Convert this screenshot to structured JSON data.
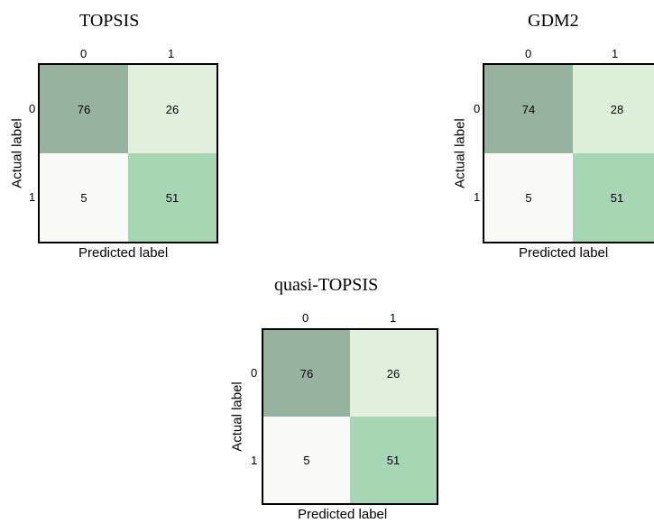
{
  "chart_data": [
    {
      "type": "heatmap",
      "title": "TOPSIS",
      "xlabel": "Predicted label",
      "ylabel": "Actual label",
      "x_categories": [
        "0",
        "1"
      ],
      "y_categories": [
        "0",
        "1"
      ],
      "values": [
        [
          76,
          26
        ],
        [
          5,
          51
        ]
      ],
      "colors": [
        [
          "#97b3a0",
          "#e0f0dc"
        ],
        [
          "#f9f9f7",
          "#a7d6b5"
        ]
      ],
      "grid": false,
      "legend": "none"
    },
    {
      "type": "heatmap",
      "title": "GDM2",
      "xlabel": "Predicted label",
      "ylabel": "Actual label",
      "x_categories": [
        "0",
        "1"
      ],
      "y_categories": [
        "0",
        "1"
      ],
      "values": [
        [
          74,
          28
        ],
        [
          5,
          51
        ]
      ],
      "colors": [
        [
          "#97b3a0",
          "#ddefd9"
        ],
        [
          "#f9f9f7",
          "#a7d6b5"
        ]
      ],
      "grid": false,
      "legend": "none"
    },
    {
      "type": "heatmap",
      "title": "quasi-TOPSIS",
      "xlabel": "Predicted label",
      "ylabel": "Actual label",
      "x_categories": [
        "0",
        "1"
      ],
      "y_categories": [
        "0",
        "1"
      ],
      "values": [
        [
          76,
          26
        ],
        [
          5,
          51
        ]
      ],
      "colors": [
        [
          "#97b3a0",
          "#e0f0dc"
        ],
        [
          "#f9f9f7",
          "#a7d6b5"
        ]
      ],
      "grid": false,
      "legend": "none"
    }
  ]
}
